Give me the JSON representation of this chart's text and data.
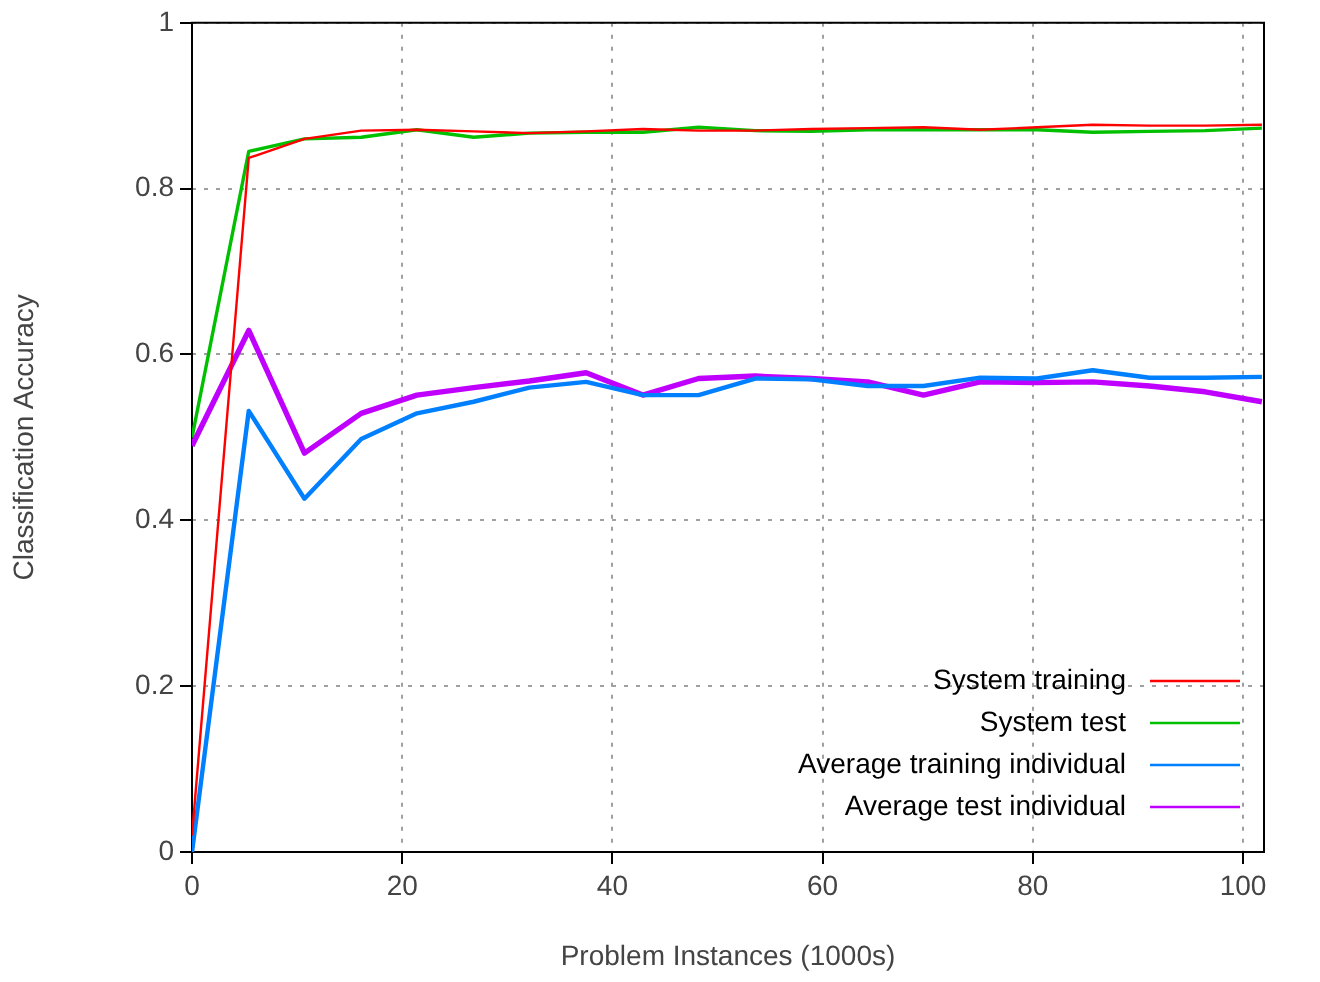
{
  "chart_data": {
    "type": "line",
    "xlabel": "Problem Instances (1000s)",
    "ylabel": "Classification Accuracy",
    "x": [
      0,
      5.4,
      10.7,
      16.1,
      21.4,
      26.8,
      32.1,
      37.5,
      42.9,
      48.2,
      53.6,
      58.9,
      64.3,
      69.6,
      75,
      80.4,
      85.7,
      91.1,
      96.4,
      101.8
    ],
    "series": [
      {
        "name": "System training",
        "color": "#ff0000",
        "values": [
          0.02,
          0.837,
          0.86,
          0.87,
          0.871,
          0.869,
          0.867,
          0.869,
          0.872,
          0.87,
          0.87,
          0.872,
          0.873,
          0.874,
          0.871,
          0.874,
          0.877,
          0.876,
          0.876,
          0.877
        ]
      },
      {
        "name": "System test",
        "color": "#00c000",
        "values": [
          0.5,
          0.845,
          0.86,
          0.862,
          0.871,
          0.862,
          0.867,
          0.868,
          0.868,
          0.874,
          0.87,
          0.869,
          0.871,
          0.871,
          0.871,
          0.871,
          0.868,
          0.869,
          0.87,
          0.873
        ]
      },
      {
        "name": "Average training individual",
        "color": "#0080ff",
        "values": [
          0.0,
          0.532,
          0.426,
          0.498,
          0.529,
          0.543,
          0.56,
          0.567,
          0.551,
          0.551,
          0.571,
          0.57,
          0.562,
          0.562,
          0.572,
          0.571,
          0.581,
          0.572,
          0.572,
          0.573
        ]
      },
      {
        "name": "Average test individual",
        "color": "#c000ff",
        "values": [
          0.49,
          0.629,
          0.481,
          0.529,
          0.551,
          0.56,
          0.568,
          0.578,
          0.551,
          0.571,
          0.574,
          0.571,
          0.567,
          0.551,
          0.567,
          0.566,
          0.567,
          0.562,
          0.555,
          0.543
        ]
      }
    ],
    "xlim": [
      0,
      102
    ],
    "ylim": [
      0,
      1
    ],
    "xticks": [
      0,
      20,
      40,
      60,
      80,
      100
    ],
    "yticks": [
      0,
      0.2,
      0.4,
      0.6,
      0.8,
      1
    ],
    "grid": true,
    "legend": "bottom right",
    "marker": "none",
    "line_style": "solid"
  }
}
